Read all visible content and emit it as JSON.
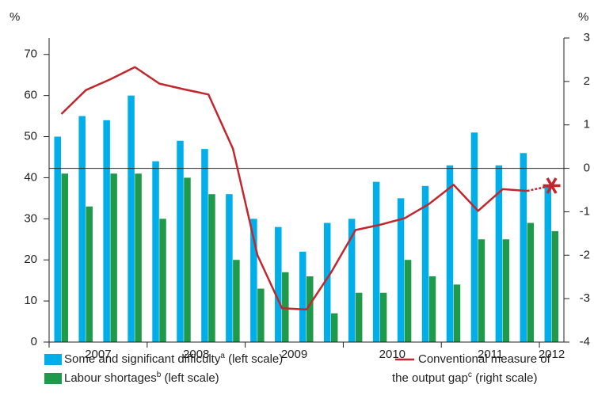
{
  "chart_data": {
    "type": "bar_line",
    "y_label": "%",
    "y2_label": "%",
    "categories": [
      null,
      null,
      null,
      null,
      null,
      null,
      null,
      null,
      null,
      null,
      null,
      null,
      null,
      null,
      null,
      null,
      null,
      null,
      null,
      null,
      null
    ],
    "year_groups": [
      {
        "label": "2007",
        "quarters": 4
      },
      {
        "label": "2008",
        "quarters": 4
      },
      {
        "label": "2009",
        "quarters": 4
      },
      {
        "label": "2010",
        "quarters": 4
      },
      {
        "label": "2011",
        "quarters": 4
      },
      {
        "label": "2012",
        "quarters": 1
      }
    ],
    "series": [
      {
        "name": "Some and significant difficulty",
        "name_sup": "a",
        "name_suffix": " (left scale)",
        "type": "bar",
        "color": "#00aeea",
        "values": [
          50,
          55,
          54,
          60,
          44,
          49,
          47,
          36,
          30,
          28,
          22,
          29,
          30,
          39,
          35,
          38,
          43,
          51,
          43,
          46,
          38
        ]
      },
      {
        "name": "Labour shortages",
        "name_sup": "b",
        "name_suffix": " (left scale)",
        "type": "bar",
        "color": "#1f9a4a",
        "values": [
          41,
          33,
          41,
          41,
          30,
          40,
          36,
          20,
          13,
          17,
          16,
          7,
          12,
          12,
          20,
          16,
          14,
          25,
          25,
          29,
          27
        ]
      },
      {
        "name": "Conventional measure of",
        "name_line2": "the output gap",
        "name_sup": "c",
        "name_suffix": " (right scale)",
        "type": "line",
        "axis": "y2",
        "color": "#c1272d",
        "projected_points": 1,
        "values": [
          1.25,
          1.8,
          2.05,
          2.33,
          1.95,
          1.82,
          1.7,
          0.45,
          -2.0,
          -3.22,
          -3.25,
          -2.4,
          -1.42,
          -1.3,
          -1.15,
          -0.82,
          -0.38,
          -0.98,
          -0.48,
          -0.52,
          -0.4
        ]
      }
    ],
    "ylim": [
      0,
      74
    ],
    "yticks": [
      0,
      10,
      20,
      30,
      40,
      50,
      60,
      70
    ],
    "y2lim": [
      -4,
      3
    ],
    "y2ticks": [
      -4,
      -3,
      -2,
      -1,
      0,
      1,
      2,
      3
    ]
  }
}
